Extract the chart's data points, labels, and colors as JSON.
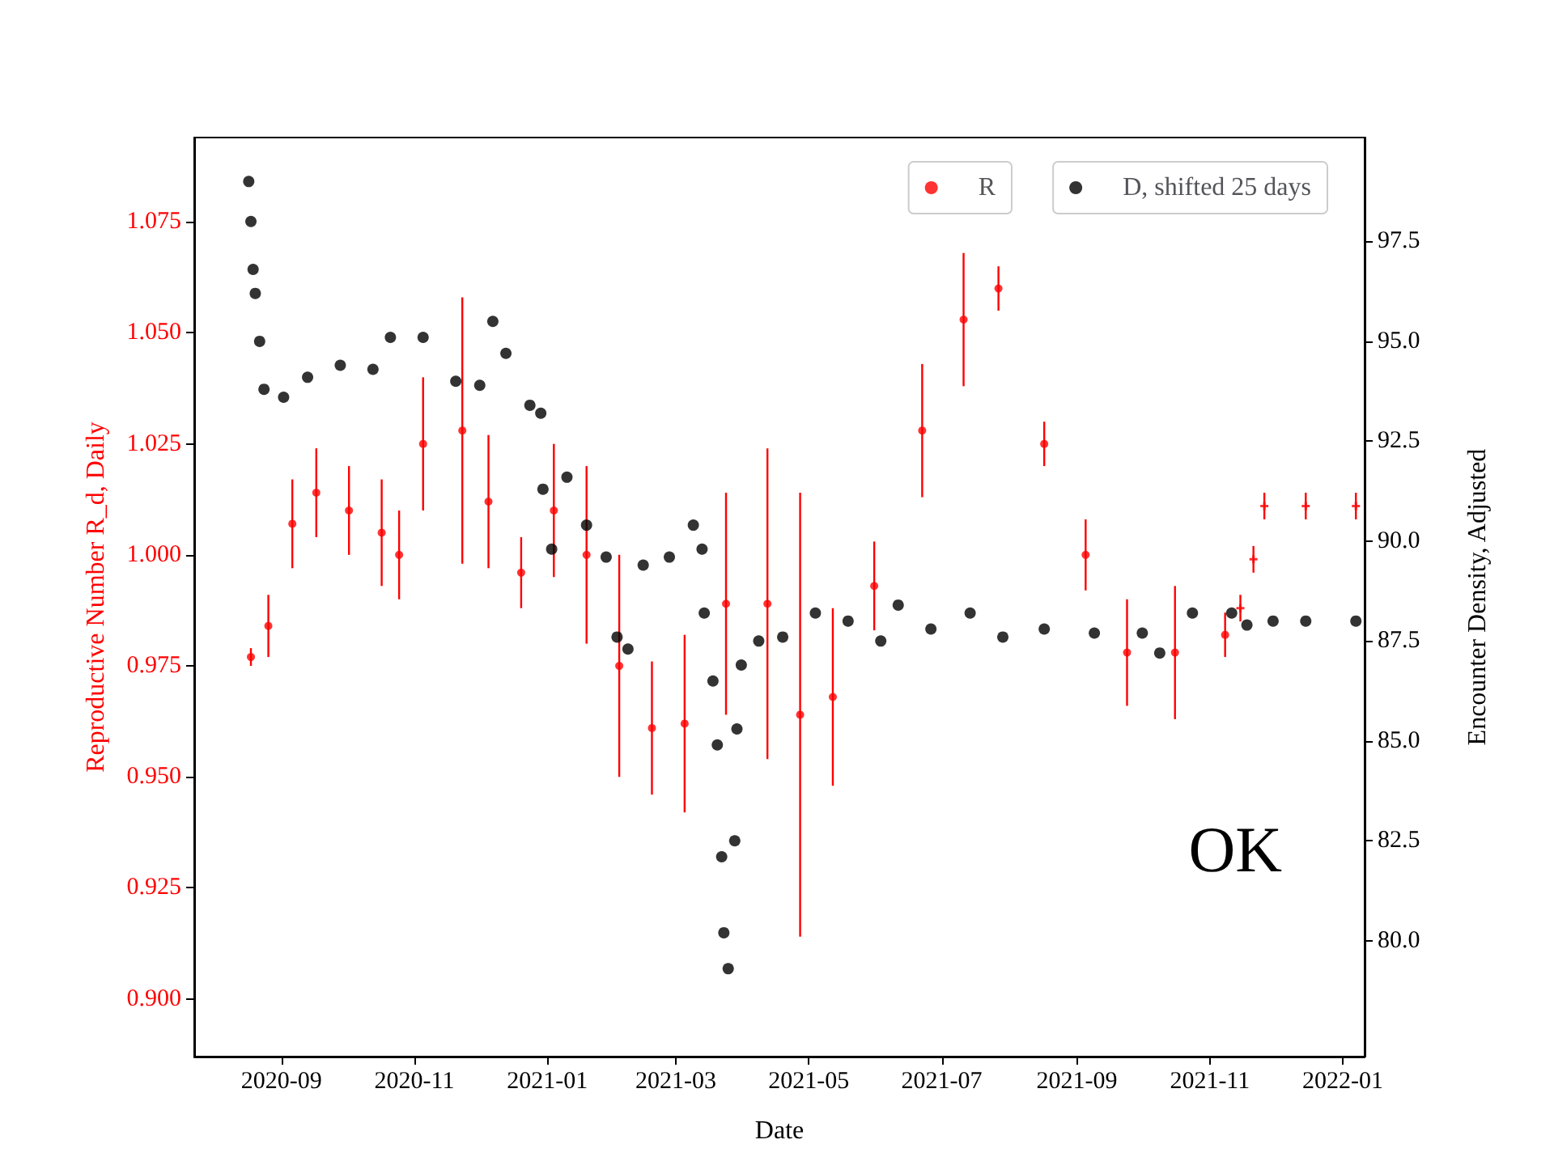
{
  "chart_data": {
    "type": "scatter",
    "xlabel": "Date",
    "ylabel": "Reproductive Number R_d, Daily",
    "y2label": "Encounter Density, Adjusted",
    "xlim": [
      "2020-07-23",
      "2022-01-11"
    ],
    "xticks": [
      {
        "value": "2020-09",
        "label": "2020-09"
      },
      {
        "value": "2020-11",
        "label": "2020-11"
      },
      {
        "value": "2021-01",
        "label": "2021-01"
      },
      {
        "value": "2021-03",
        "label": "2021-03"
      },
      {
        "value": "2021-05",
        "label": "2021-05"
      },
      {
        "value": "2021-07",
        "label": "2021-07"
      },
      {
        "value": "2021-09",
        "label": "2021-09"
      },
      {
        "value": "2021-11",
        "label": "2021-11"
      },
      {
        "value": "2022-01",
        "label": "2022-01"
      }
    ],
    "ylim": [
      0.887,
      1.094
    ],
    "yticks": [
      {
        "value": 0.9,
        "label": "0.900"
      },
      {
        "value": 0.925,
        "label": "0.925"
      },
      {
        "value": 0.95,
        "label": "0.950"
      },
      {
        "value": 0.975,
        "label": "0.975"
      },
      {
        "value": 1.0,
        "label": "1.000"
      },
      {
        "value": 1.025,
        "label": "1.025"
      },
      {
        "value": 1.05,
        "label": "1.050"
      },
      {
        "value": 1.075,
        "label": "1.075"
      }
    ],
    "y2lim": [
      77.1,
      100.1
    ],
    "y2ticks": [
      {
        "value": 80,
        "label": "80.0"
      },
      {
        "value": 82.5,
        "label": "82.5"
      },
      {
        "value": 85,
        "label": "85.0"
      },
      {
        "value": 87.5,
        "label": "87.5"
      },
      {
        "value": 90,
        "label": "90.0"
      },
      {
        "value": 92.5,
        "label": "92.5"
      },
      {
        "value": 95,
        "label": "95.0"
      },
      {
        "value": 97.5,
        "label": "97.5"
      }
    ],
    "grid": false,
    "legend": "top right",
    "annotations": [
      "OK"
    ],
    "series": [
      {
        "name": "R",
        "color": "#ff0000",
        "marker": "circle",
        "x": [
          "2020-08-18",
          "2020-08-26",
          "2020-09-06",
          "2020-09-17",
          "2020-10-02",
          "2020-10-17",
          "2020-10-25",
          "2020-11-05",
          "2020-11-23",
          "2020-12-05",
          "2020-12-20",
          "2021-01-04",
          "2021-01-19",
          "2021-02-03",
          "2021-02-18",
          "2021-03-05",
          "2021-03-24",
          "2021-04-12",
          "2021-04-27",
          "2021-05-12",
          "2021-05-31",
          "2021-06-22",
          "2021-07-11",
          "2021-07-27",
          "2021-08-17",
          "2021-09-05",
          "2021-09-24",
          "2021-10-16",
          "2021-11-08"
        ],
        "values": [
          0.977,
          0.984,
          1.007,
          1.014,
          1.01,
          1.005,
          1.0,
          1.025,
          1.028,
          1.012,
          0.996,
          1.01,
          1.0,
          0.975,
          0.961,
          0.962,
          0.989,
          0.989,
          0.964,
          0.968,
          0.993,
          1.028,
          1.053,
          1.06,
          1.025,
          1.0,
          0.978,
          0.978,
          0.982
        ],
        "errors": [
          0.002,
          0.007,
          0.01,
          0.01,
          0.01,
          0.012,
          0.01,
          0.015,
          0.03,
          0.015,
          0.008,
          0.015,
          0.02,
          0.025,
          0.015,
          0.02,
          0.025,
          0.035,
          0.05,
          0.02,
          0.01,
          0.015,
          0.015,
          0.005,
          0.005,
          0.008,
          0.012,
          0.015,
          0.005
        ]
      },
      {
        "color": "#ff0000",
        "marker": "cross",
        "x": [
          "2021-11-15",
          "2021-11-21",
          "2021-11-26",
          "2021-12-15",
          "2022-01-07"
        ],
        "values": [
          0.988,
          0.999,
          1.011,
          1.011,
          1.011
        ],
        "errors": [
          0.003,
          0.003,
          0.003,
          0.003,
          0.003
        ]
      },
      {
        "name": "D, shifted 25 days",
        "color": "#000000",
        "marker": "circle",
        "axis": "y2",
        "x": [
          "2020-08-17",
          "2020-08-18",
          "2020-08-19",
          "2020-08-20",
          "2020-08-22",
          "2020-08-24",
          "2020-09-02",
          "2020-09-13",
          "2020-09-28",
          "2020-10-13",
          "2020-10-21",
          "2020-11-05",
          "2020-11-20",
          "2020-12-01",
          "2020-12-07",
          "2020-12-13",
          "2020-12-24",
          "2020-12-29",
          "2020-12-30",
          "2021-01-03",
          "2021-01-10",
          "2021-01-19",
          "2021-01-28",
          "2021-02-02",
          "2021-02-07",
          "2021-02-14",
          "2021-02-26",
          "2021-03-09",
          "2021-03-13",
          "2021-03-14",
          "2021-03-18",
          "2021-03-20",
          "2021-03-22",
          "2021-03-23",
          "2021-03-25",
          "2021-03-28",
          "2021-03-29",
          "2021-03-31",
          "2021-04-08",
          "2021-04-19",
          "2021-05-04",
          "2021-05-19",
          "2021-06-03",
          "2021-06-11",
          "2021-06-26",
          "2021-07-14",
          "2021-07-29",
          "2021-08-17",
          "2021-09-09",
          "2021-10-01",
          "2021-10-09",
          "2021-10-24",
          "2021-11-11",
          "2021-11-18",
          "2021-11-30",
          "2021-12-15",
          "2022-01-07"
        ],
        "values": [
          99.0,
          98.0,
          96.8,
          96.2,
          95.0,
          93.8,
          93.6,
          94.1,
          94.4,
          94.3,
          95.1,
          95.1,
          94.0,
          93.9,
          95.5,
          94.7,
          93.4,
          93.2,
          91.3,
          89.8,
          91.6,
          90.4,
          89.6,
          87.6,
          87.3,
          89.4,
          89.6,
          90.4,
          89.8,
          88.2,
          86.5,
          84.9,
          82.1,
          80.2,
          79.3,
          82.5,
          85.3,
          86.9,
          87.5,
          87.6,
          88.2,
          88.0,
          87.5,
          88.4,
          87.8,
          88.2,
          87.6,
          87.8,
          87.7,
          87.7,
          87.2,
          88.2,
          88.2,
          87.9,
          88.0,
          88.0,
          88.0
        ]
      }
    ]
  }
}
